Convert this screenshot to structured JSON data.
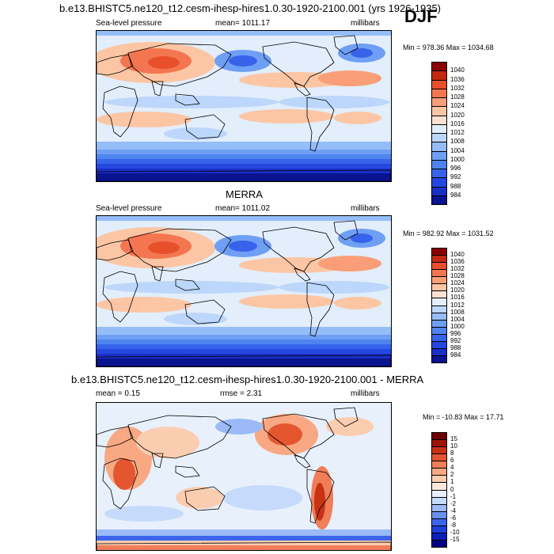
{
  "header": {
    "case_title": "b.e13.BHISTC5.ne120_t12.cesm-ihesp-hires1.0.30-1920-2100.001 (yrs 1926-1935)",
    "season": "DJF"
  },
  "colors": {
    "positive_max": "#8b0000",
    "negative_max": "#000080",
    "neutral": "#f5f5f5",
    "coast": "#000000"
  },
  "chart_data": [
    {
      "type": "heatmap",
      "id": "model",
      "title": "",
      "variable": "Sea-level pressure",
      "mean_label": "mean= 1011.17",
      "units": "millibars",
      "minmax_label": "Min = 978.36 Max = 1034.68",
      "min": 978.36,
      "max": 1034.68,
      "mean": 1011.17,
      "levels": [
        "984",
        "988",
        "992",
        "996",
        "1000",
        "1004",
        "1008",
        "1012",
        "1016",
        "1020",
        "1024",
        "1028",
        "1032",
        "1036",
        "1040"
      ],
      "colors": [
        "#0a1490",
        "#1a2fc4",
        "#2447e0",
        "#3763ea",
        "#4f84f0",
        "#6f9ff4",
        "#95bdf8",
        "#bdd6fb",
        "#e2eefb",
        "#fbe2d0",
        "#fcc6a4",
        "#f99e78",
        "#f47650",
        "#e8502c",
        "#c32810",
        "#8b0000"
      ]
    },
    {
      "type": "heatmap",
      "id": "obs",
      "title": "MERRA",
      "variable": "Sea-level pressure",
      "mean_label": "mean= 1011.02",
      "units": "millibars",
      "minmax_label": "Min = 982.92 Max = 1031.52",
      "min": 982.92,
      "max": 1031.52,
      "mean": 1011.02,
      "levels": [
        "984",
        "988",
        "992",
        "996",
        "1000",
        "1004",
        "1008",
        "1012",
        "1016",
        "1020",
        "1024",
        "1028",
        "1032",
        "1036",
        "1040"
      ],
      "colors": [
        "#0a1490",
        "#1a2fc4",
        "#2447e0",
        "#3763ea",
        "#4f84f0",
        "#6f9ff4",
        "#95bdf8",
        "#bdd6fb",
        "#e2eefb",
        "#fbe2d0",
        "#fcc6a4",
        "#f99e78",
        "#f47650",
        "#e8502c",
        "#c32810",
        "#8b0000"
      ]
    },
    {
      "type": "heatmap",
      "id": "diff",
      "title": "b.e13.BHISTC5.ne120_t12.cesm-ihesp-hires1.0.30-1920-2100.001 - MERRA",
      "variable": "",
      "mean_label": "mean =   0.15",
      "rmse_label": "rmse =   2.31",
      "units": "millibars",
      "minmax_label": "Min = -10.83 Max =  17.71",
      "min": -10.83,
      "max": 17.71,
      "mean": 0.15,
      "rmse": 2.31,
      "levels": [
        "-15",
        "-10",
        "-8",
        "-6",
        "-4",
        "-2",
        "-1",
        "0",
        "1",
        "2",
        "4",
        "6",
        "8",
        "10",
        "15"
      ],
      "colors": [
        "#000080",
        "#0b1fb8",
        "#1f3fdc",
        "#3c64ec",
        "#6a90f3",
        "#9bbaf7",
        "#c6dafb",
        "#e8f0fc",
        "#fde8dc",
        "#fbcdb0",
        "#f8a882",
        "#f07e58",
        "#e45630",
        "#c83214",
        "#a01406",
        "#6e0000"
      ]
    }
  ]
}
